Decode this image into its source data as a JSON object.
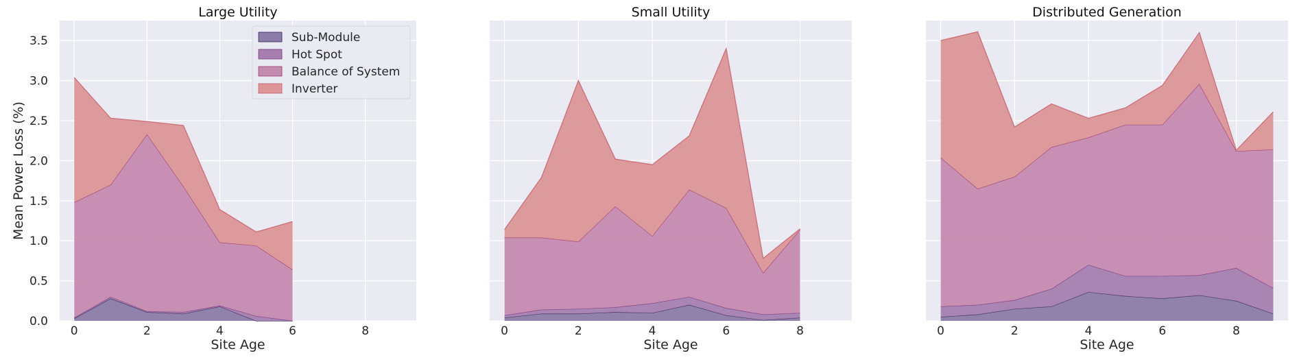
{
  "chart_data": {
    "type": "area",
    "stacked": true,
    "grid": true,
    "legend_placement": "top-right of first panel",
    "ylabel": "Mean Power Loss (%)",
    "ylim": [
      0,
      3.75
    ],
    "yticks": [
      "0.0",
      "0.5",
      "1.0",
      "1.5",
      "2.0",
      "2.5",
      "3.0",
      "3.5"
    ],
    "xlim": [
      -0.4,
      9.4
    ],
    "xticks": [
      "0",
      "2",
      "4",
      "6",
      "8"
    ],
    "legend": [
      {
        "name": "Sub-Module",
        "color": "#8c7ca8"
      },
      {
        "name": "Hot Spot",
        "color": "#a57fb0"
      },
      {
        "name": "Balance of System",
        "color": "#c48aaf"
      },
      {
        "name": "Inverter",
        "color": "#dc9697"
      }
    ],
    "panels": [
      {
        "title": "Large Utility",
        "xlabel": "Site Age",
        "x": [
          0,
          1,
          2,
          3,
          4,
          5,
          6
        ],
        "series": [
          {
            "name": "Sub-Module",
            "values": [
              0.03,
              0.28,
              0.11,
              0.09,
              0.18,
              0.0,
              0.0
            ]
          },
          {
            "name": "Hot Spot",
            "values": [
              0.01,
              0.02,
              0.01,
              0.02,
              0.01,
              0.06,
              0.0
            ]
          },
          {
            "name": "Balance of System",
            "values": [
              1.44,
              1.4,
              2.21,
              1.57,
              0.79,
              0.88,
              0.64
            ]
          },
          {
            "name": "Inverter",
            "values": [
              1.56,
              0.83,
              0.16,
              0.76,
              0.41,
              0.17,
              0.6
            ]
          }
        ]
      },
      {
        "title": "Small Utility",
        "xlabel": "Site Age",
        "x": [
          0,
          1,
          2,
          3,
          4,
          5,
          6,
          7,
          8
        ],
        "series": [
          {
            "name": "Sub-Module",
            "values": [
              0.04,
              0.09,
              0.09,
              0.11,
              0.1,
              0.2,
              0.07,
              0.01,
              0.04
            ]
          },
          {
            "name": "Hot Spot",
            "values": [
              0.03,
              0.05,
              0.06,
              0.06,
              0.12,
              0.1,
              0.09,
              0.07,
              0.06
            ]
          },
          {
            "name": "Balance of System",
            "values": [
              0.97,
              0.9,
              0.84,
              1.26,
              0.84,
              1.34,
              1.25,
              0.52,
              1.04
            ]
          },
          {
            "name": "Inverter",
            "values": [
              0.1,
              0.75,
              2.01,
              0.59,
              0.89,
              0.67,
              1.99,
              0.18,
              0.01
            ]
          }
        ]
      },
      {
        "title": "Distributed Generation",
        "xlabel": "Site Age",
        "x": [
          0,
          1,
          2,
          3,
          4,
          5,
          6,
          7,
          8,
          9
        ],
        "series": [
          {
            "name": "Sub-Module",
            "values": [
              0.05,
              0.08,
              0.15,
              0.18,
              0.36,
              0.31,
              0.28,
              0.32,
              0.25,
              0.09
            ]
          },
          {
            "name": "Hot Spot",
            "values": [
              0.13,
              0.12,
              0.11,
              0.22,
              0.34,
              0.25,
              0.28,
              0.25,
              0.41,
              0.32
            ]
          },
          {
            "name": "Balance of System",
            "values": [
              1.86,
              1.45,
              1.54,
              1.77,
              1.59,
              1.89,
              1.89,
              2.39,
              1.46,
              1.73
            ]
          },
          {
            "name": "Inverter",
            "values": [
              1.46,
              1.96,
              0.62,
              0.54,
              0.24,
              0.21,
              0.49,
              0.64,
              0.01,
              0.47
            ]
          }
        ]
      }
    ]
  }
}
